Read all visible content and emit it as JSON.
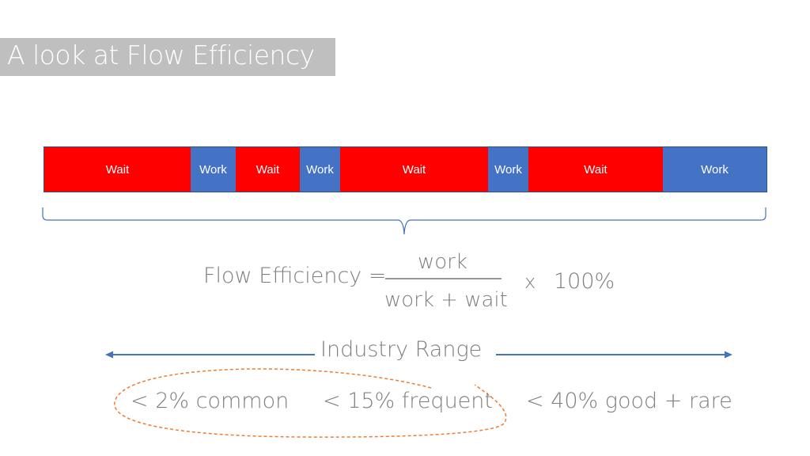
{
  "title": "A look at Flow Efficiency",
  "timeline": {
    "segments": [
      {
        "label": "Wait",
        "kind": "wait"
      },
      {
        "label": "Work",
        "kind": "work"
      },
      {
        "label": "Wait",
        "kind": "wait"
      },
      {
        "label": "Work",
        "kind": "work"
      },
      {
        "label": "Wait",
        "kind": "wait"
      },
      {
        "label": "Work",
        "kind": "work"
      },
      {
        "label": "Wait",
        "kind": "wait"
      },
      {
        "label": "Work",
        "kind": "work"
      }
    ],
    "colors": {
      "wait": "#ff0000",
      "work": "#4472c4",
      "border": "#2f528f"
    }
  },
  "formula": {
    "lhs": "Flow Efficiency =",
    "numerator": "work",
    "denominator": "work + wait",
    "times": "x",
    "percent": "100%"
  },
  "range": {
    "label": "Industry Range",
    "items": [
      "< 2% common",
      "< 15% frequent",
      "< 40% good + rare"
    ],
    "arrow_color": "#4472c4",
    "highlight_color": "#ed7d31"
  }
}
